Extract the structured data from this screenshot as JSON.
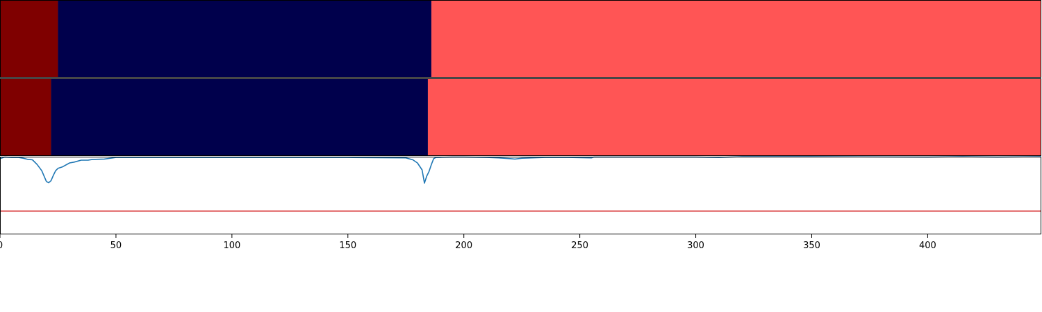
{
  "chart_data": [
    {
      "type": "segmented-bar",
      "xlim": [
        0,
        449
      ],
      "segments": [
        {
          "start": 0,
          "end": 25,
          "color": "#7f0000"
        },
        {
          "start": 25,
          "end": 186,
          "color": "#00004c"
        },
        {
          "start": 186,
          "end": 449,
          "color": "#ff5555"
        }
      ]
    },
    {
      "type": "segmented-bar",
      "xlim": [
        0,
        449
      ],
      "segments": [
        {
          "start": 0,
          "end": 22,
          "color": "#7f0000"
        },
        {
          "start": 22,
          "end": 184.5,
          "color": "#00004c"
        },
        {
          "start": 184.5,
          "end": 449,
          "color": "#ff5555"
        }
      ]
    },
    {
      "type": "line",
      "xlim": [
        0,
        449
      ],
      "ylim": [
        0,
        1
      ],
      "xticks": [
        "0",
        "50",
        "100",
        "150",
        "200",
        "250",
        "300",
        "350",
        "400"
      ],
      "threshold": 0.3,
      "threshold_color": "#d62728",
      "series_color": "#1f77b4",
      "x": [
        0,
        2,
        5,
        8,
        10,
        12,
        14,
        16,
        18,
        20,
        21,
        22,
        23,
        24,
        25,
        27,
        30,
        32,
        35,
        38,
        40,
        45,
        50,
        60,
        80,
        100,
        150,
        175,
        178,
        180,
        182,
        183,
        184,
        185,
        186,
        187,
        188,
        190,
        195,
        200,
        210,
        215,
        220,
        222,
        225,
        235,
        245,
        255,
        256,
        265,
        300,
        310,
        320,
        350,
        400,
        415,
        430,
        449
      ],
      "y": [
        0.975,
        0.995,
        0.99,
        0.99,
        0.98,
        0.965,
        0.96,
        0.9,
        0.82,
        0.68,
        0.665,
        0.69,
        0.76,
        0.82,
        0.85,
        0.87,
        0.92,
        0.93,
        0.955,
        0.955,
        0.965,
        0.97,
        0.99,
        0.99,
        0.99,
        0.99,
        0.99,
        0.985,
        0.96,
        0.92,
        0.83,
        0.66,
        0.75,
        0.81,
        0.9,
        0.975,
        0.99,
        0.992,
        0.995,
        0.995,
        0.99,
        0.985,
        0.975,
        0.97,
        0.98,
        0.99,
        0.99,
        0.985,
        0.995,
        0.995,
        0.995,
        0.99,
        1.0,
        1.0,
        0.995,
        1.0,
        0.995,
        1.0
      ]
    }
  ]
}
